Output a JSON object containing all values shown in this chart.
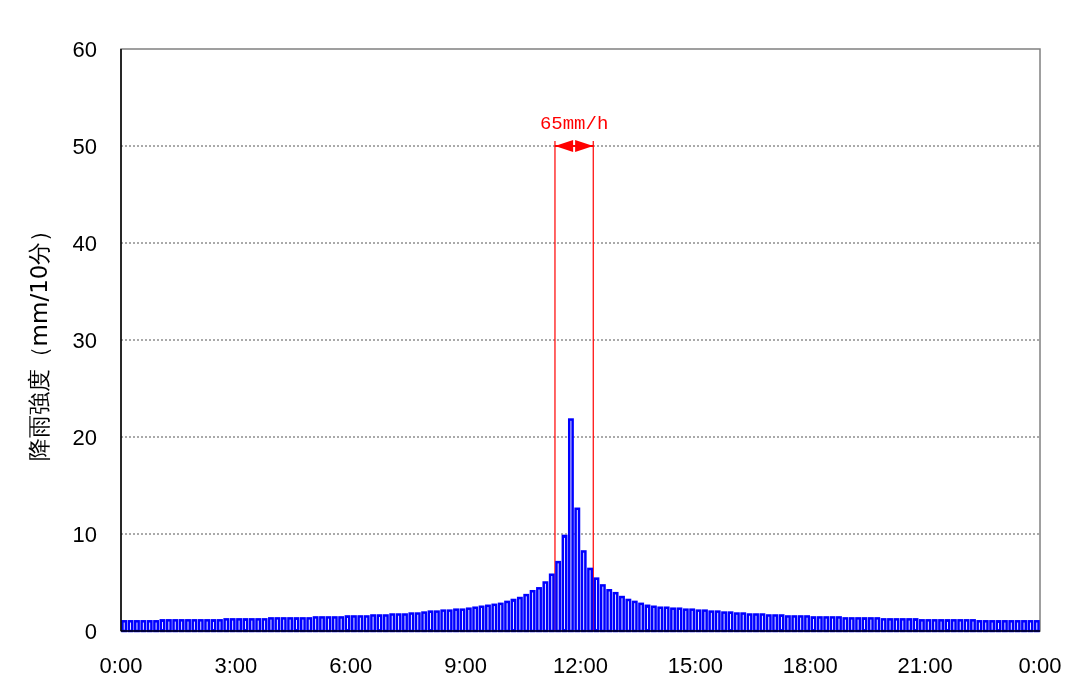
{
  "chart_data": {
    "type": "histogram",
    "ylabel": "降雨強度（mm/10分）",
    "bins": [
      0,
      0.1667,
      0.3333,
      0.5,
      0.6667,
      0.8333,
      1,
      1.1667,
      1.3333,
      1.5,
      1.6667,
      1.8333,
      2,
      2.1667,
      2.3333,
      2.5,
      2.6667,
      2.8333,
      3,
      3.1667,
      3.3333,
      3.5,
      3.6667,
      3.8333,
      4,
      4.1667,
      4.3333,
      4.5,
      4.6667,
      4.8333,
      5,
      5.1667,
      5.3333,
      5.5,
      5.6667,
      5.8333,
      6,
      6.1667,
      6.3333,
      6.5,
      6.6667,
      6.8333,
      7,
      7.1667,
      7.3333,
      7.5,
      7.6667,
      7.8333,
      8,
      8.1667,
      8.3333,
      8.5,
      8.6667,
      8.8333,
      9,
      9.1667,
      9.3333,
      9.5,
      9.6667,
      9.8333,
      10,
      10.1667,
      10.3333,
      10.5,
      10.6667,
      10.8333,
      11,
      11.1667,
      11.3333,
      11.5,
      11.6667,
      11.8333,
      12,
      12.1667,
      12.3333,
      12.5,
      12.6667,
      12.8333,
      13,
      13.1667,
      13.3333,
      13.5,
      13.6667,
      13.8333,
      14,
      14.1667,
      14.3333,
      14.5,
      14.6667,
      14.8333,
      15,
      15.1667,
      15.3333,
      15.5,
      15.6667,
      15.8333,
      16,
      16.1667,
      16.3333,
      16.5,
      16.6667,
      16.8333,
      17,
      17.1667,
      17.3333,
      17.5,
      17.6667,
      17.8333,
      18,
      18.1667,
      18.3333,
      18.5,
      18.6667,
      18.8333,
      19,
      19.1667,
      19.3333,
      19.5,
      19.6667,
      19.8333,
      20,
      20.1667,
      20.3333,
      20.5,
      20.6667,
      20.8333,
      21,
      21.1667,
      21.3333,
      21.5,
      21.6667,
      21.8333,
      22,
      22.1667,
      22.3333,
      22.5,
      22.6667,
      22.8333,
      23,
      23.1667,
      23.3333,
      23.5,
      23.6667,
      23.8333,
      24
    ],
    "values": [
      1.0,
      1.0,
      1.0,
      1.0,
      1.0,
      1.0,
      1.1,
      1.1,
      1.1,
      1.1,
      1.1,
      1.1,
      1.1,
      1.1,
      1.1,
      1.1,
      1.2,
      1.2,
      1.2,
      1.2,
      1.2,
      1.2,
      1.2,
      1.3,
      1.3,
      1.3,
      1.3,
      1.3,
      1.3,
      1.3,
      1.4,
      1.4,
      1.4,
      1.4,
      1.4,
      1.5,
      1.5,
      1.5,
      1.5,
      1.6,
      1.6,
      1.6,
      1.7,
      1.7,
      1.7,
      1.8,
      1.8,
      1.9,
      2.0,
      2.0,
      2.1,
      2.1,
      2.2,
      2.2,
      2.3,
      2.4,
      2.5,
      2.6,
      2.7,
      2.8,
      3.0,
      3.2,
      3.4,
      3.7,
      4.1,
      4.4,
      5.0,
      5.8,
      7.1,
      9.8,
      21.8,
      12.6,
      8.2,
      6.4,
      5.4,
      4.7,
      4.2,
      3.9,
      3.5,
      3.2,
      3.0,
      2.8,
      2.6,
      2.5,
      2.4,
      2.4,
      2.3,
      2.3,
      2.2,
      2.2,
      2.1,
      2.1,
      2.0,
      2.0,
      1.9,
      1.9,
      1.8,
      1.8,
      1.7,
      1.7,
      1.7,
      1.6,
      1.6,
      1.6,
      1.5,
      1.5,
      1.5,
      1.5,
      1.4,
      1.4,
      1.4,
      1.4,
      1.4,
      1.3,
      1.3,
      1.3,
      1.3,
      1.3,
      1.3,
      1.2,
      1.2,
      1.2,
      1.2,
      1.2,
      1.2,
      1.1,
      1.1,
      1.1,
      1.1,
      1.1,
      1.1,
      1.1,
      1.1,
      1.1,
      1.0,
      1.0,
      1.0,
      1.0,
      1.0,
      1.0,
      1.0,
      1.0,
      1.0,
      1.0
    ],
    "color": "#0000ff",
    "xlim": [
      0,
      24
    ],
    "xticks": [
      {
        "value": 0,
        "label": "0:00"
      },
      {
        "value": 3,
        "label": "3:00"
      },
      {
        "value": 6,
        "label": "6:00"
      },
      {
        "value": 9,
        "label": "9:00"
      },
      {
        "value": 12,
        "label": "12:00"
      },
      {
        "value": 15,
        "label": "15:00"
      },
      {
        "value": 18,
        "label": "18:00"
      },
      {
        "value": 21,
        "label": "21:00"
      },
      {
        "value": 24,
        "label": "0:00"
      }
    ],
    "ylim": [
      0,
      60
    ],
    "yticks": [
      0,
      10,
      20,
      30,
      40,
      50,
      60
    ],
    "grid": "y",
    "ref_lines": [
      {
        "axis": "x",
        "value": 11.3333,
        "color": "#ff0000"
      },
      {
        "axis": "x",
        "value": 12.3333,
        "color": "#ff0000"
      }
    ],
    "annotations": [
      "65mm/h"
    ]
  }
}
